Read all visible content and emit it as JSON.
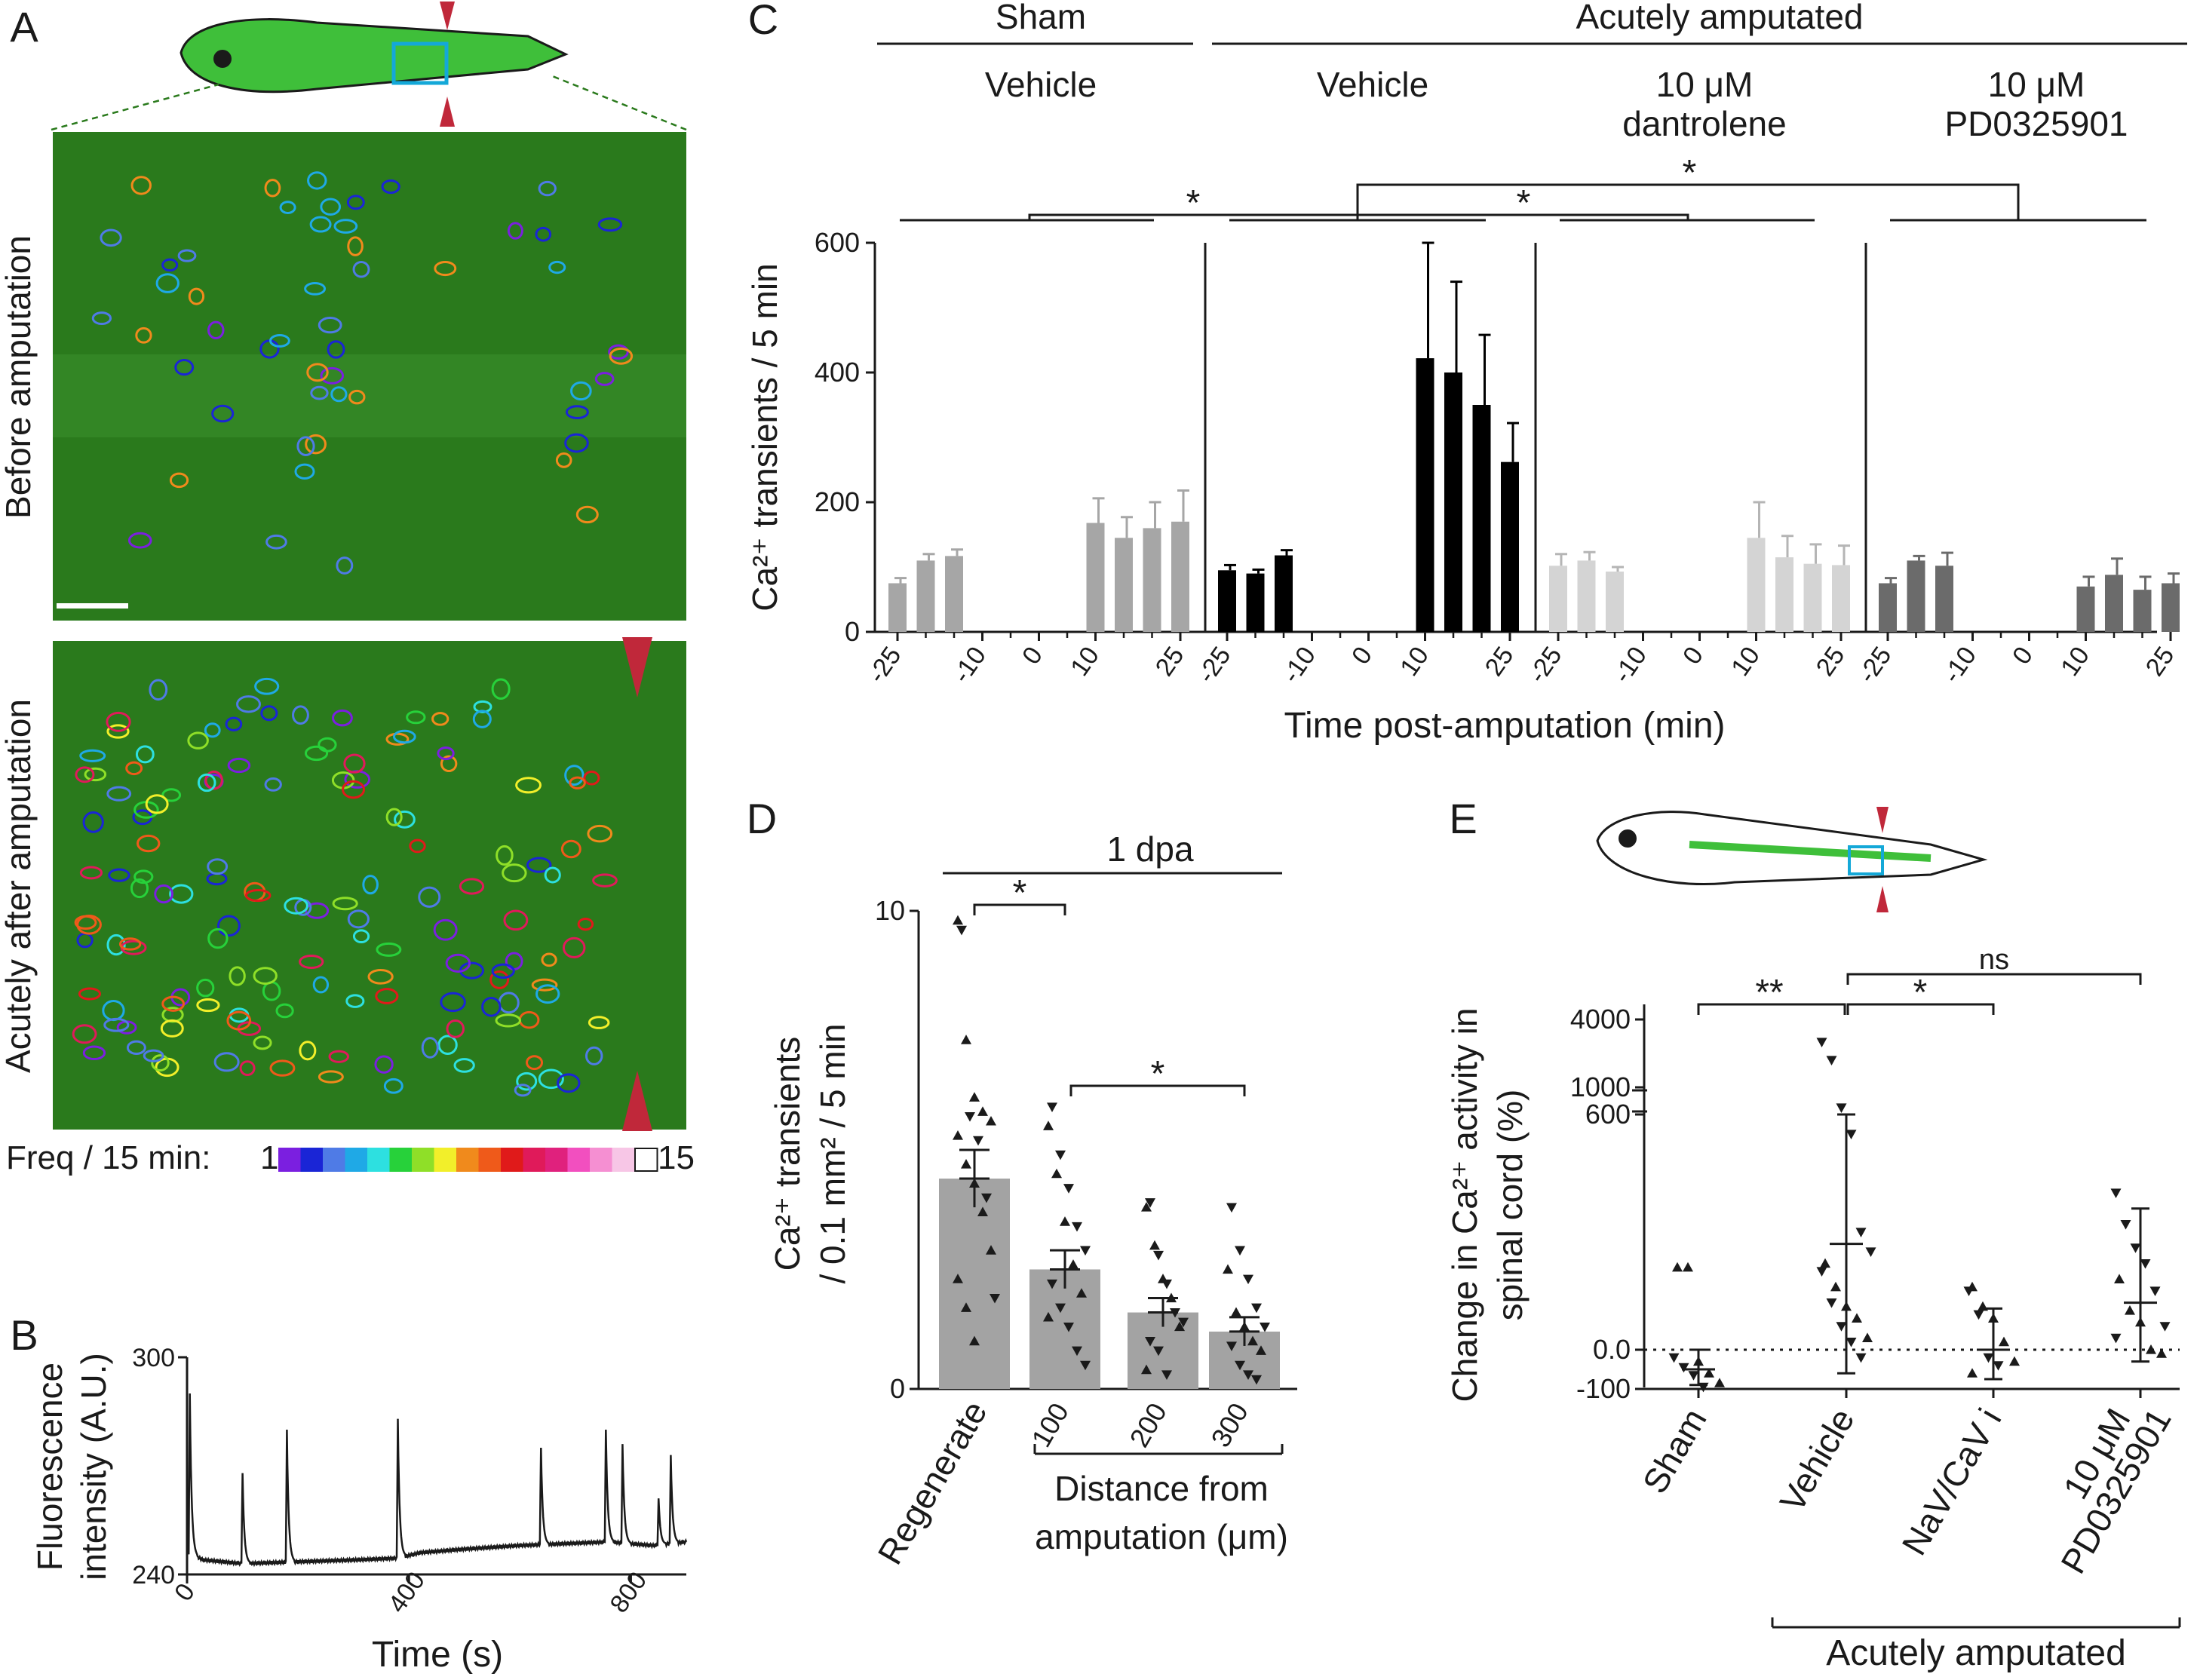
{
  "panel_labels": [
    "A",
    "B",
    "C",
    "D",
    "E"
  ],
  "panel_a": {
    "image_top_label": "Before amputation",
    "image_bottom_label": "Acutely after amputation",
    "freq_label": "Freq / 15 min:",
    "freq_min": "1",
    "freq_max": "15",
    "freq_colors": [
      "#7b1fe0",
      "#1a25d6",
      "#4f7be6",
      "#1fa9e6",
      "#2de0e0",
      "#27d13a",
      "#8fdf28",
      "#f2ef2a",
      "#f08a1c",
      "#ef5a1a",
      "#e01a1a",
      "#e01a5a",
      "#e0217d",
      "#f24fbf",
      "#f58fd2",
      "#f7c6e6",
      "#ffffff"
    ]
  },
  "colors": {
    "sham": "#a6a6a6",
    "vehicle": "#000000",
    "dantrolene": "#d4d4d4",
    "pd": "#6b6b6b",
    "bar_d": "#a3a3a3",
    "tissue": "#2a7a1c",
    "arrow": "#c0283a",
    "highlight_box": "#14a8d8"
  },
  "chart_data": [
    {
      "panel": "B",
      "type": "line",
      "xlabel": "Time (s)",
      "ylabel": "Fluorescence intensity (A.U.)",
      "ylabel_lines": [
        "Fluorescence",
        "intensity (A.U.)"
      ],
      "xlim": [
        0,
        900
      ],
      "ylim": [
        240,
        300
      ],
      "xticks": [
        0,
        400,
        800
      ],
      "yticks": [
        240,
        300
      ],
      "baseline": [
        [
          0,
          246
        ],
        [
          30,
          244
        ],
        [
          100,
          243
        ],
        [
          200,
          243.5
        ],
        [
          300,
          244
        ],
        [
          380,
          244.5
        ],
        [
          420,
          246
        ],
        [
          500,
          247
        ],
        [
          600,
          248
        ],
        [
          680,
          248.5
        ],
        [
          760,
          249
        ],
        [
          840,
          248
        ],
        [
          900,
          249
        ]
      ],
      "peaks": [
        {
          "t": 5,
          "v": 290
        },
        {
          "t": 100,
          "v": 268
        },
        {
          "t": 180,
          "v": 280
        },
        {
          "t": 380,
          "v": 283
        },
        {
          "t": 638,
          "v": 275
        },
        {
          "t": 755,
          "v": 280
        },
        {
          "t": 785,
          "v": 276
        },
        {
          "t": 850,
          "v": 261
        },
        {
          "t": 872,
          "v": 273
        }
      ]
    },
    {
      "panel": "C",
      "type": "bar",
      "ylabel": "Ca²⁺ transients / 5 min",
      "xlabel": "Time post-amputation (min)",
      "ylim": [
        0,
        600
      ],
      "yticks": [
        0,
        200,
        400,
        600
      ],
      "xticks": [
        "-25",
        "-10",
        "0",
        "10",
        "25"
      ],
      "times": [
        -25,
        -20,
        -15,
        -10,
        -5,
        0,
        5,
        10,
        15,
        20,
        25
      ],
      "header_top": [
        "Sham",
        "Acutely amputated"
      ],
      "header_groups": [
        [
          "Vehicle"
        ],
        [
          "Vehicle"
        ],
        [
          "10 μM",
          "dantrolene"
        ],
        [
          "10 μM",
          "PD0325901"
        ]
      ],
      "series": [
        {
          "name": "Vehicle",
          "color_key": "sham",
          "values": [
            75,
            110,
            117,
            null,
            null,
            null,
            null,
            168,
            145,
            160,
            170
          ],
          "errors": [
            8,
            10,
            10,
            null,
            null,
            null,
            null,
            38,
            32,
            40,
            48
          ]
        },
        {
          "name": "Vehicle",
          "color_key": "vehicle",
          "values": [
            95,
            90,
            118,
            null,
            null,
            null,
            null,
            422,
            400,
            350,
            262
          ],
          "errors": [
            8,
            6,
            8,
            null,
            null,
            null,
            null,
            178,
            140,
            108,
            60
          ]
        },
        {
          "name": "10 μM dantrolene",
          "color_key": "dantrolene",
          "values": [
            102,
            110,
            93,
            null,
            null,
            null,
            null,
            145,
            115,
            105,
            103
          ],
          "errors": [
            18,
            13,
            7,
            null,
            null,
            null,
            null,
            55,
            33,
            30,
            30
          ]
        },
        {
          "name": "10 μM PD0325901",
          "color_key": "pd",
          "values": [
            75,
            110,
            102,
            null,
            null,
            null,
            null,
            70,
            88,
            65,
            75
          ],
          "errors": [
            8,
            7,
            20,
            null,
            null,
            null,
            null,
            15,
            25,
            20,
            15
          ]
        }
      ],
      "significance": [
        "*",
        "*",
        "*"
      ]
    },
    {
      "panel": "D",
      "type": "bar",
      "ylabel_lines": [
        "Ca²⁺ transients",
        "/ 0.1 mm² / 5 min"
      ],
      "ylim": [
        0,
        10
      ],
      "yticks": [
        0,
        10
      ],
      "categories": [
        "Regenerate",
        "100",
        "200",
        "300"
      ],
      "xlabel_lines": [
        "Distance from",
        "amputation (μm)"
      ],
      "header": "1 dpa",
      "means": [
        4.4,
        2.5,
        1.6,
        1.2
      ],
      "errors": [
        0.6,
        0.4,
        0.3,
        0.3
      ],
      "points": [
        {
          "u": [
            9.8,
            7.3,
            6.1,
            5.8,
            5.6,
            5.3,
            4.7,
            4.3,
            3.7,
            2.9,
            2.3,
            1.7,
            1.0
          ],
          "d": [
            9.6,
            5.7,
            5.2,
            4.0,
            1.9
          ]
        },
        {
          "u": [
            5.5,
            4.5,
            3.5,
            2.6,
            2.0,
            1.5
          ],
          "d": [
            5.9,
            4.9,
            4.2,
            3.4,
            2.9,
            2.2,
            1.7,
            1.3,
            0.8,
            0.5
          ]
        },
        {
          "u": [
            3.8,
            3.0,
            2.3,
            1.9,
            1.3,
            0.4
          ],
          "d": [
            3.9,
            2.8,
            2.2,
            1.6,
            1.4,
            1.0,
            0.8,
            0.3
          ]
        },
        {
          "u": [
            2.5,
            1.6,
            1.3,
            1.0,
            0.8
          ],
          "d": [
            3.8,
            2.9,
            2.3,
            1.7,
            1.3,
            0.9,
            0.5,
            0.3,
            0.2
          ]
        }
      ],
      "significance": [
        "*",
        "*"
      ]
    },
    {
      "panel": "E",
      "type": "scatter",
      "ylabel_lines": [
        "Change in Ca²⁺ activity in",
        "spinal cord (%)"
      ],
      "yticks": [
        "-100",
        "0.0",
        "600",
        "1000",
        "4000"
      ],
      "categories": [
        "Sham",
        "Vehicle",
        "NaV/CaV i",
        "10 μM PD0325901"
      ],
      "category_lines": [
        [
          "Sham"
        ],
        [
          "Vehicle"
        ],
        [
          "NaV/CaV i"
        ],
        [
          "10 μM",
          "PD0325901"
        ]
      ],
      "footer": "Acutely amputated",
      "means": [
        -50,
        270,
        0,
        120
      ],
      "sd": [
        [
          -90,
          0
        ],
        [
          -60,
          600
        ],
        [
          -75,
          105
        ],
        [
          -30,
          360
        ]
      ],
      "points": [
        {
          "u": [
            210,
            210,
            -30,
            -60,
            -85
          ],
          "d": [
            -20,
            -45,
            -65,
            -95
          ]
        },
        {
          "u": [
            220,
            160,
            110,
            80,
            30
          ],
          "d": [
            3000,
            2200,
            700,
            550,
            300,
            250,
            200,
            120,
            60,
            20,
            -20
          ]
        },
        {
          "u": [
            160,
            110,
            80,
            20,
            -30,
            -60
          ],
          "d": [
            150,
            90,
            -20,
            -40
          ]
        },
        {
          "u": [
            180,
            100,
            70,
            0,
            -10
          ],
          "d": [
            400,
            320,
            260,
            220,
            150,
            60,
            30
          ]
        }
      ],
      "significance": [
        "**",
        "*",
        "ns"
      ]
    }
  ]
}
